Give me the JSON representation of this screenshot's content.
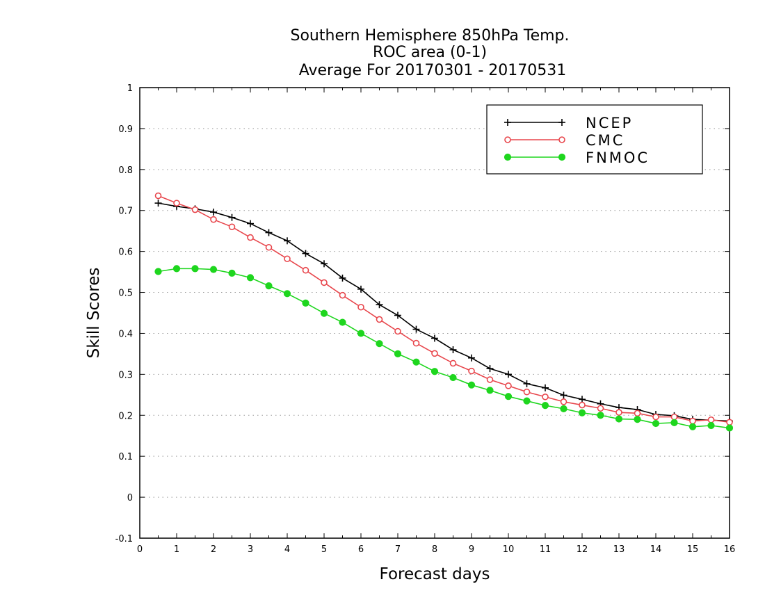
{
  "chart_data": {
    "type": "line",
    "title_lines": [
      "Southern Hemisphere 850hPa Temp.",
      "ROC area (0-1)",
      "Average For 20170301 - 20170531"
    ],
    "xlabel": "Forecast days",
    "ylabel": "Skill Scores",
    "xlim": [
      0,
      16
    ],
    "ylim": [
      -0.1,
      1
    ],
    "x_ticks": [
      0,
      1,
      2,
      3,
      4,
      5,
      6,
      7,
      8,
      9,
      10,
      11,
      12,
      13,
      14,
      15,
      16
    ],
    "y_ticks": [
      -0.1,
      0,
      0.1,
      0.2,
      0.3,
      0.4,
      0.5,
      0.6,
      0.7,
      0.8,
      0.9,
      1
    ],
    "y_tick_labels": [
      "-0.1",
      "0",
      "0.1",
      "0.2",
      "0.3",
      "0.4",
      "0.5",
      "0.6",
      "0.7",
      "0.8",
      "0.9",
      "1"
    ],
    "grid": "horizontal dotted",
    "legend_position": "top-right",
    "x": [
      0.5,
      1,
      1.5,
      2,
      2.5,
      3,
      3.5,
      4,
      4.5,
      5,
      5.5,
      6,
      6.5,
      7,
      7.5,
      8,
      8.5,
      9,
      9.5,
      10,
      10.5,
      11,
      11.5,
      12,
      12.5,
      13,
      13.5,
      14,
      14.5,
      15,
      15.5,
      16
    ],
    "series": [
      {
        "name": "NCEP",
        "color": "#000000",
        "marker": "plus",
        "values": [
          0.718,
          0.71,
          0.704,
          0.696,
          0.683,
          0.668,
          0.646,
          0.626,
          0.595,
          0.57,
          0.535,
          0.508,
          0.47,
          0.444,
          0.41,
          0.388,
          0.36,
          0.34,
          0.314,
          0.3,
          0.277,
          0.267,
          0.249,
          0.239,
          0.228,
          0.219,
          0.214,
          0.202,
          0.199,
          0.19,
          0.188,
          0.186
        ]
      },
      {
        "name": "CMC",
        "color": "#e8474d",
        "marker": "open-circle",
        "values": [
          0.736,
          0.718,
          0.702,
          0.678,
          0.66,
          0.634,
          0.61,
          0.582,
          0.554,
          0.524,
          0.493,
          0.464,
          0.434,
          0.405,
          0.376,
          0.351,
          0.327,
          0.308,
          0.287,
          0.272,
          0.257,
          0.245,
          0.233,
          0.225,
          0.217,
          0.207,
          0.205,
          0.196,
          0.196,
          0.186,
          0.189,
          0.183
        ]
      },
      {
        "name": "FNMOC",
        "color": "#1ed61e",
        "marker": "filled-circle",
        "values": [
          0.551,
          0.558,
          0.558,
          0.556,
          0.547,
          0.536,
          0.516,
          0.497,
          0.474,
          0.449,
          0.427,
          0.4,
          0.375,
          0.35,
          0.33,
          0.307,
          0.292,
          0.274,
          0.261,
          0.246,
          0.235,
          0.224,
          0.216,
          0.206,
          0.2,
          0.191,
          0.19,
          0.18,
          0.182,
          0.172,
          0.175,
          0.169
        ]
      }
    ]
  }
}
